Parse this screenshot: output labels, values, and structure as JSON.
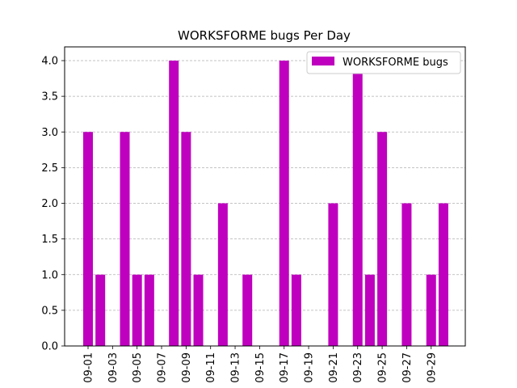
{
  "chart_data": {
    "type": "bar",
    "title": "WORKSFORME bugs Per Day",
    "xlabel": "",
    "ylabel": "",
    "categories": [
      "09-01",
      "09-02",
      "09-03",
      "09-04",
      "09-05",
      "09-06",
      "09-07",
      "09-08",
      "09-09",
      "09-10",
      "09-11",
      "09-12",
      "09-13",
      "09-14",
      "09-15",
      "09-16",
      "09-17",
      "09-18",
      "09-19",
      "09-20",
      "09-21",
      "09-22",
      "09-23",
      "09-24",
      "09-25",
      "09-26",
      "09-27",
      "09-28",
      "09-29",
      "09-30"
    ],
    "series": [
      {
        "name": "WORKSFORME bugs",
        "color": "#bf00bf",
        "values": [
          3,
          1,
          0,
          3,
          1,
          1,
          0,
          4,
          3,
          1,
          0,
          2,
          0,
          1,
          0,
          0,
          4,
          1,
          0,
          0,
          2,
          0,
          4,
          1,
          3,
          0,
          2,
          0,
          1,
          2
        ]
      }
    ],
    "x_tick_labels": [
      "09-01",
      "09-03",
      "09-05",
      "09-07",
      "09-09",
      "09-11",
      "09-13",
      "09-15",
      "09-17",
      "09-19",
      "09-21",
      "09-23",
      "09-25",
      "09-27",
      "09-29"
    ],
    "y_tick_labels": [
      "0.0",
      "0.5",
      "1.0",
      "1.5",
      "2.0",
      "2.5",
      "3.0",
      "3.5",
      "4.0"
    ],
    "ylim": [
      0,
      4.0
    ],
    "grid": "y-dashed",
    "legend_position": "top-right"
  }
}
